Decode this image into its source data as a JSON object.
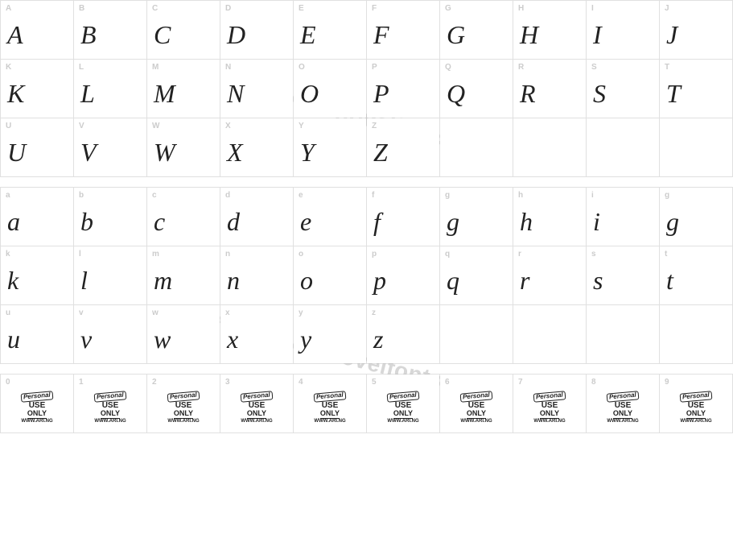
{
  "watermark_text": "from www.novelfonts.com",
  "watermark_color": "#b8b8b8",
  "grid_border_color": "#e0e0e0",
  "label_color": "#cccccc",
  "glyph_color": "#222222",
  "label_fontsize": 10,
  "glyph_fontsize": 32,
  "rows_upper": [
    [
      {
        "label": "A",
        "glyph": "A"
      },
      {
        "label": "B",
        "glyph": "B"
      },
      {
        "label": "C",
        "glyph": "C"
      },
      {
        "label": "D",
        "glyph": "D"
      },
      {
        "label": "E",
        "glyph": "E"
      },
      {
        "label": "F",
        "glyph": "F"
      },
      {
        "label": "G",
        "glyph": "G"
      },
      {
        "label": "H",
        "glyph": "H"
      },
      {
        "label": "I",
        "glyph": "I"
      },
      {
        "label": "J",
        "glyph": "J"
      }
    ],
    [
      {
        "label": "K",
        "glyph": "K"
      },
      {
        "label": "L",
        "glyph": "L"
      },
      {
        "label": "M",
        "glyph": "M"
      },
      {
        "label": "N",
        "glyph": "N"
      },
      {
        "label": "O",
        "glyph": "O"
      },
      {
        "label": "P",
        "glyph": "P"
      },
      {
        "label": "Q",
        "glyph": "Q"
      },
      {
        "label": "R",
        "glyph": "R"
      },
      {
        "label": "S",
        "glyph": "S"
      },
      {
        "label": "T",
        "glyph": "T"
      }
    ],
    [
      {
        "label": "U",
        "glyph": "U"
      },
      {
        "label": "V",
        "glyph": "V"
      },
      {
        "label": "W",
        "glyph": "W"
      },
      {
        "label": "X",
        "glyph": "X"
      },
      {
        "label": "Y",
        "glyph": "Y"
      },
      {
        "label": "Z",
        "glyph": "Z"
      },
      {
        "label": "",
        "glyph": ""
      },
      {
        "label": "",
        "glyph": ""
      },
      {
        "label": "",
        "glyph": ""
      },
      {
        "label": "",
        "glyph": ""
      }
    ]
  ],
  "rows_lower": [
    [
      {
        "label": "a",
        "glyph": "a"
      },
      {
        "label": "b",
        "glyph": "b"
      },
      {
        "label": "c",
        "glyph": "c"
      },
      {
        "label": "d",
        "glyph": "d"
      },
      {
        "label": "e",
        "glyph": "e"
      },
      {
        "label": "f",
        "glyph": "f"
      },
      {
        "label": "g",
        "glyph": "g"
      },
      {
        "label": "h",
        "glyph": "h"
      },
      {
        "label": "i",
        "glyph": "i"
      },
      {
        "label": "g",
        "glyph": "g"
      }
    ],
    [
      {
        "label": "k",
        "glyph": "k"
      },
      {
        "label": "l",
        "glyph": "l"
      },
      {
        "label": "m",
        "glyph": "m"
      },
      {
        "label": "n",
        "glyph": "n"
      },
      {
        "label": "o",
        "glyph": "o"
      },
      {
        "label": "p",
        "glyph": "p"
      },
      {
        "label": "q",
        "glyph": "q"
      },
      {
        "label": "r",
        "glyph": "r"
      },
      {
        "label": "s",
        "glyph": "s"
      },
      {
        "label": "t",
        "glyph": "t"
      }
    ],
    [
      {
        "label": "u",
        "glyph": "u"
      },
      {
        "label": "v",
        "glyph": "v"
      },
      {
        "label": "w",
        "glyph": "w"
      },
      {
        "label": "x",
        "glyph": "x"
      },
      {
        "label": "y",
        "glyph": "y"
      },
      {
        "label": "z",
        "glyph": "z"
      },
      {
        "label": "",
        "glyph": ""
      },
      {
        "label": "",
        "glyph": ""
      },
      {
        "label": "",
        "glyph": ""
      },
      {
        "label": "",
        "glyph": ""
      }
    ]
  ],
  "rows_digits": [
    [
      {
        "label": "0"
      },
      {
        "label": "1"
      },
      {
        "label": "2"
      },
      {
        "label": "3"
      },
      {
        "label": "4"
      },
      {
        "label": "5"
      },
      {
        "label": "6"
      },
      {
        "label": "7"
      },
      {
        "label": "8"
      },
      {
        "label": "9"
      }
    ]
  ],
  "badge": {
    "banner": "Personal",
    "use": "USE",
    "only": "ONLY",
    "url": "WWW.ARI.NG"
  }
}
